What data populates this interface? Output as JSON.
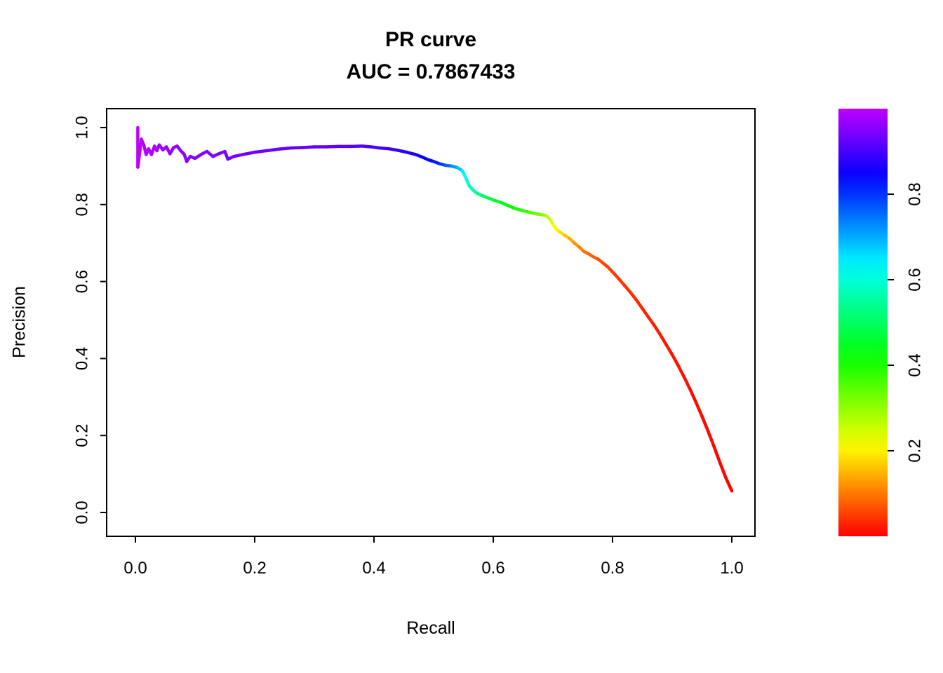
{
  "chart_data": {
    "type": "line",
    "title": "PR curve",
    "subtitle": "AUC = 0.7867433",
    "auc": 0.7867433,
    "xlabel": "Recall",
    "ylabel": "Precision",
    "xlim": [
      0,
      1
    ],
    "ylim": [
      0,
      1
    ],
    "grid": false,
    "x_tick_values": [
      0.0,
      0.2,
      0.4,
      0.6,
      0.8,
      1.0
    ],
    "x_tick_labels": [
      "0.0",
      "0.2",
      "0.4",
      "0.6",
      "0.8",
      "1.0"
    ],
    "y_tick_values": [
      0.0,
      0.2,
      0.4,
      0.6,
      0.8,
      1.0
    ],
    "y_tick_labels": [
      "0.0",
      "0.2",
      "0.4",
      "0.6",
      "0.8",
      "1.0"
    ],
    "colorbar": {
      "position": "right",
      "scale_name": "rainbow (red at bottom to violet at top)",
      "min": 0,
      "max": 1,
      "hue_range_deg": [
        0,
        285
      ],
      "tick_values": [
        0.2,
        0.4,
        0.6,
        0.8
      ],
      "tick_labels": [
        "0.2",
        "0.4",
        "0.6",
        "0.8"
      ]
    },
    "series_note": "points are [recall, precision, threshold_score]; line color encodes threshold via rainbow scale",
    "points": [
      [
        0.004,
        1.0,
        1.0
      ],
      [
        0.004,
        0.897,
        1.0
      ],
      [
        0.01,
        0.97,
        0.995
      ],
      [
        0.014,
        0.955,
        0.99
      ],
      [
        0.018,
        0.93,
        0.99
      ],
      [
        0.022,
        0.945,
        0.985
      ],
      [
        0.027,
        0.93,
        0.985
      ],
      [
        0.032,
        0.952,
        0.98
      ],
      [
        0.036,
        0.94,
        0.98
      ],
      [
        0.04,
        0.955,
        0.975
      ],
      [
        0.046,
        0.942,
        0.975
      ],
      [
        0.052,
        0.95,
        0.97
      ],
      [
        0.058,
        0.932,
        0.97
      ],
      [
        0.064,
        0.948,
        0.965
      ],
      [
        0.07,
        0.952,
        0.965
      ],
      [
        0.076,
        0.94,
        0.96
      ],
      [
        0.082,
        0.93,
        0.96
      ],
      [
        0.086,
        0.912,
        0.958
      ],
      [
        0.092,
        0.925,
        0.956
      ],
      [
        0.1,
        0.92,
        0.954
      ],
      [
        0.11,
        0.93,
        0.952
      ],
      [
        0.12,
        0.938,
        0.95
      ],
      [
        0.13,
        0.925,
        0.948
      ],
      [
        0.14,
        0.932,
        0.946
      ],
      [
        0.15,
        0.938,
        0.944
      ],
      [
        0.155,
        0.918,
        0.942
      ],
      [
        0.165,
        0.925,
        0.94
      ],
      [
        0.18,
        0.93,
        0.938
      ],
      [
        0.2,
        0.936,
        0.935
      ],
      [
        0.22,
        0.94,
        0.932
      ],
      [
        0.24,
        0.944,
        0.93
      ],
      [
        0.26,
        0.947,
        0.928
      ],
      [
        0.28,
        0.948,
        0.926
      ],
      [
        0.3,
        0.95,
        0.924
      ],
      [
        0.32,
        0.95,
        0.92
      ],
      [
        0.34,
        0.951,
        0.917
      ],
      [
        0.36,
        0.951,
        0.914
      ],
      [
        0.38,
        0.952,
        0.91
      ],
      [
        0.395,
        0.95,
        0.905
      ],
      [
        0.41,
        0.947,
        0.9
      ],
      [
        0.425,
        0.945,
        0.893
      ],
      [
        0.44,
        0.941,
        0.885
      ],
      [
        0.455,
        0.936,
        0.875
      ],
      [
        0.47,
        0.93,
        0.862
      ],
      [
        0.48,
        0.924,
        0.85
      ],
      [
        0.49,
        0.917,
        0.84
      ],
      [
        0.5,
        0.912,
        0.83
      ],
      [
        0.51,
        0.906,
        0.81
      ],
      [
        0.52,
        0.902,
        0.78
      ],
      [
        0.53,
        0.9,
        0.74
      ],
      [
        0.54,
        0.896,
        0.7
      ],
      [
        0.548,
        0.888,
        0.66
      ],
      [
        0.552,
        0.876,
        0.63
      ],
      [
        0.556,
        0.862,
        0.61
      ],
      [
        0.56,
        0.848,
        0.59
      ],
      [
        0.566,
        0.838,
        0.57
      ],
      [
        0.572,
        0.83,
        0.55
      ],
      [
        0.58,
        0.824,
        0.52
      ],
      [
        0.59,
        0.818,
        0.5
      ],
      [
        0.6,
        0.812,
        0.47
      ],
      [
        0.612,
        0.806,
        0.45
      ],
      [
        0.624,
        0.798,
        0.43
      ],
      [
        0.636,
        0.79,
        0.41
      ],
      [
        0.648,
        0.785,
        0.39
      ],
      [
        0.66,
        0.78,
        0.37
      ],
      [
        0.672,
        0.776,
        0.34
      ],
      [
        0.684,
        0.773,
        0.31
      ],
      [
        0.69,
        0.77,
        0.28
      ],
      [
        0.696,
        0.76,
        0.25
      ],
      [
        0.7,
        0.748,
        0.23
      ],
      [
        0.706,
        0.736,
        0.21
      ],
      [
        0.712,
        0.728,
        0.19
      ],
      [
        0.72,
        0.72,
        0.17
      ],
      [
        0.728,
        0.712,
        0.15
      ],
      [
        0.736,
        0.7,
        0.13
      ],
      [
        0.744,
        0.69,
        0.115
      ],
      [
        0.752,
        0.678,
        0.1
      ],
      [
        0.76,
        0.672,
        0.09
      ],
      [
        0.768,
        0.664,
        0.08
      ],
      [
        0.776,
        0.658,
        0.07
      ],
      [
        0.784,
        0.648,
        0.06
      ],
      [
        0.792,
        0.638,
        0.055
      ],
      [
        0.8,
        0.625,
        0.05
      ],
      [
        0.81,
        0.608,
        0.046
      ],
      [
        0.82,
        0.59,
        0.042
      ],
      [
        0.83,
        0.572,
        0.038
      ],
      [
        0.84,
        0.552,
        0.034
      ],
      [
        0.85,
        0.53,
        0.031
      ],
      [
        0.86,
        0.508,
        0.028
      ],
      [
        0.87,
        0.486,
        0.025
      ],
      [
        0.88,
        0.462,
        0.022
      ],
      [
        0.89,
        0.436,
        0.019
      ],
      [
        0.9,
        0.41,
        0.017
      ],
      [
        0.91,
        0.382,
        0.015
      ],
      [
        0.92,
        0.352,
        0.013
      ],
      [
        0.93,
        0.32,
        0.011
      ],
      [
        0.94,
        0.286,
        0.009
      ],
      [
        0.95,
        0.25,
        0.008
      ],
      [
        0.96,
        0.212,
        0.006
      ],
      [
        0.97,
        0.172,
        0.005
      ],
      [
        0.98,
        0.13,
        0.004
      ],
      [
        0.99,
        0.09,
        0.003
      ],
      [
        1.0,
        0.056,
        0.002
      ]
    ]
  }
}
